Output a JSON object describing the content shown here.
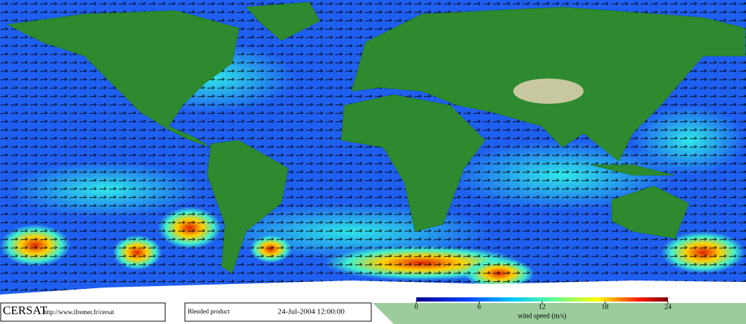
{
  "header": {
    "logo": "CERSAT",
    "url": "http://www.ifremer.fr/cersat"
  },
  "product": {
    "name": "Blended product",
    "date": "24-Jul-2004 12:00:00"
  },
  "colorbar": {
    "label": "wind speed (m/s)",
    "range": [
      0,
      24
    ],
    "ticks": [
      0,
      6,
      12,
      18,
      24
    ]
  }
}
